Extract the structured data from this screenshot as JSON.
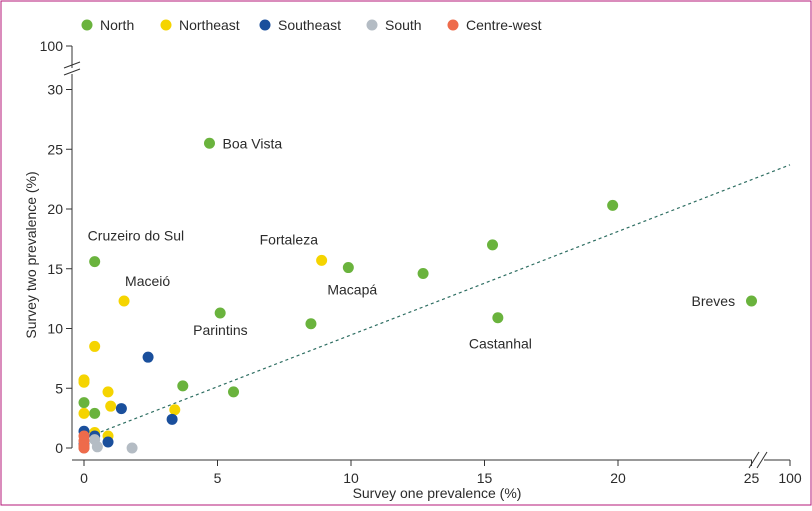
{
  "chart_data": {
    "type": "scatter",
    "xlabel": "Survey one prevalence (%)",
    "ylabel": "Survey two prevalence (%)",
    "xlim": [
      0,
      100
    ],
    "ylim": [
      0,
      100
    ],
    "x_ticks": [
      "0",
      "5",
      "10",
      "15",
      "20",
      "25",
      "100"
    ],
    "y_ticks": [
      "0",
      "5",
      "10",
      "15",
      "20",
      "25",
      "30",
      "100"
    ],
    "axis_breaks": {
      "x": "between 25 and 100",
      "y": "between 30 and 100"
    },
    "grid": false,
    "legend_position": "top",
    "trendline": {
      "style": "dashed",
      "color": "#2e6e62",
      "from": [
        0,
        0.8
      ],
      "to": [
        26.5,
        23.7
      ]
    },
    "series": [
      {
        "name": "North",
        "color": "#6ab33d",
        "points": [
          [
            4.7,
            25.5
          ],
          [
            19.8,
            20.3
          ],
          [
            15.3,
            17.0
          ],
          [
            0.4,
            15.6
          ],
          [
            9.9,
            15.1
          ],
          [
            12.7,
            14.6
          ],
          [
            5.1,
            11.3
          ],
          [
            8.5,
            10.4
          ],
          [
            15.5,
            10.9
          ],
          [
            25.0,
            12.3
          ],
          [
            3.7,
            5.2
          ],
          [
            5.6,
            4.7
          ],
          [
            0.0,
            3.8
          ],
          [
            0.4,
            2.9
          ]
        ]
      },
      {
        "name": "Northeast",
        "color": "#f5d400",
        "points": [
          [
            8.9,
            15.7
          ],
          [
            1.5,
            12.3
          ],
          [
            0.4,
            8.5
          ],
          [
            0.0,
            5.7
          ],
          [
            0.0,
            5.5
          ],
          [
            0.9,
            4.7
          ],
          [
            1.0,
            3.5
          ],
          [
            3.4,
            3.2
          ],
          [
            0.0,
            2.9
          ],
          [
            0.9,
            1.0
          ],
          [
            0.4,
            1.3
          ]
        ]
      },
      {
        "name": "Southeast",
        "color": "#1a4f9c",
        "points": [
          [
            2.4,
            7.6
          ],
          [
            1.4,
            3.3
          ],
          [
            3.3,
            2.4
          ],
          [
            0.0,
            1.4
          ],
          [
            0.4,
            1.0
          ],
          [
            0.9,
            0.5
          ],
          [
            0.0,
            0.3
          ]
        ]
      },
      {
        "name": "South",
        "color": "#b4bcc4",
        "points": [
          [
            0.4,
            0.7
          ],
          [
            1.8,
            0.0
          ],
          [
            0.5,
            0.1
          ],
          [
            0.0,
            0.0
          ]
        ]
      },
      {
        "name": "Centre-west",
        "color": "#ee6b4b",
        "points": [
          [
            0.0,
            1.0
          ],
          [
            0.0,
            0.6
          ],
          [
            0.0,
            0.2
          ],
          [
            0.0,
            0.0
          ]
        ]
      }
    ],
    "annotations": [
      {
        "text": "Boa Vista",
        "x": 4.7,
        "y": 25.5
      },
      {
        "text": "Cruzeiro do Sul",
        "x": 0.4,
        "y": 15.6
      },
      {
        "text": "Fortaleza",
        "x": 8.9,
        "y": 15.7
      },
      {
        "text": "Maceió",
        "x": 1.5,
        "y": 12.3
      },
      {
        "text": "Macapá",
        "x": 9.9,
        "y": 15.1
      },
      {
        "text": "Parintins",
        "x": 5.1,
        "y": 11.3
      },
      {
        "text": "Castanhal",
        "x": 15.5,
        "y": 10.9
      },
      {
        "text": "Breves",
        "x": 25.0,
        "y": 12.3
      }
    ]
  }
}
